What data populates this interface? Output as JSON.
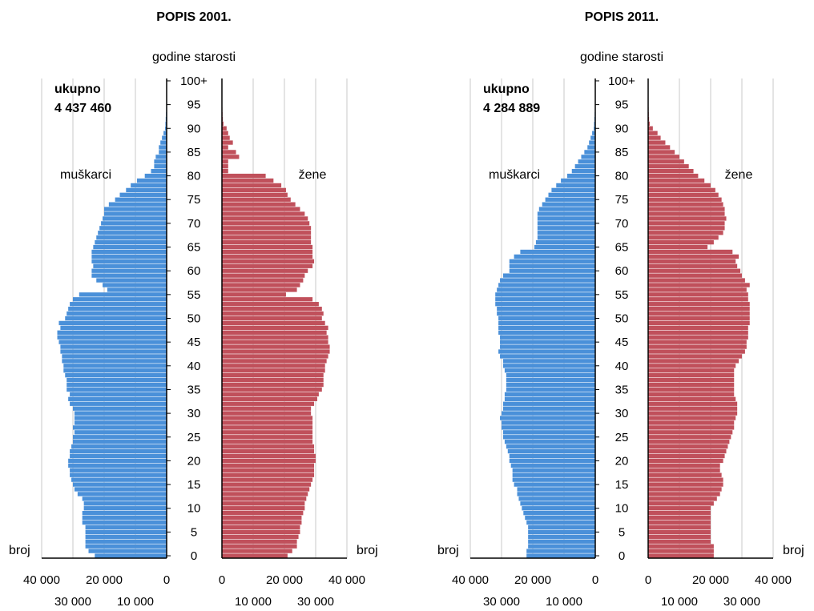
{
  "chart_data": [
    {
      "type": "bar",
      "orientation": "horizontal",
      "title": "POPIS 2001.",
      "ylabel": "godine starosti",
      "xlabel": "broj",
      "total_label": "ukupno",
      "total_value": "4 437 460",
      "age_ticks": [
        "0",
        "5",
        "10",
        "15",
        "20",
        "25",
        "30",
        "35",
        "40",
        "45",
        "50",
        "55",
        "60",
        "65",
        "70",
        "75",
        "80",
        "85",
        "90",
        "95",
        "100+"
      ],
      "x_ticks_top": [
        "40 000",
        "20 000",
        "0"
      ],
      "x_ticks_bottom": [
        "30 000",
        "10 000"
      ],
      "x_ticks_top_right": [
        "0",
        "20 000",
        "40 000"
      ],
      "x_ticks_bottom_right": [
        "10 000",
        "30 000"
      ],
      "xlim": [
        0,
        40000
      ],
      "grid": true,
      "series": [
        {
          "name": "muškarci",
          "color": "#4a90d9",
          "values": [
            23000,
            25000,
            26000,
            26000,
            26000,
            26000,
            26000,
            27000,
            27000,
            27000,
            26500,
            26500,
            27000,
            28500,
            29500,
            30000,
            30500,
            31000,
            31000,
            31500,
            31500,
            31000,
            31000,
            30500,
            30000,
            30000,
            29500,
            30000,
            29500,
            29500,
            29500,
            30000,
            31000,
            31500,
            31000,
            32000,
            32000,
            32000,
            32500,
            33000,
            33000,
            33500,
            33500,
            34000,
            34000,
            34500,
            35000,
            35000,
            34000,
            34500,
            32500,
            32000,
            31500,
            31000,
            30000,
            28000,
            19000,
            20500,
            22500,
            24000,
            24000,
            23500,
            24000,
            24000,
            24000,
            23500,
            23000,
            22500,
            22000,
            21500,
            21000,
            20500,
            20000,
            20000,
            18500,
            16500,
            15000,
            13000,
            11500,
            9500,
            7000,
            5000,
            4000,
            4000,
            3500,
            2500,
            2500,
            2000,
            1500,
            1000,
            500,
            400,
            300,
            200,
            150,
            100,
            80,
            60,
            40,
            30,
            20
          ]
        },
        {
          "name": "žene",
          "color": "#c0505b",
          "values": [
            21000,
            22500,
            24000,
            24000,
            24500,
            25000,
            25000,
            25500,
            25500,
            26000,
            26500,
            26500,
            27000,
            27500,
            28000,
            28500,
            29000,
            29500,
            29500,
            29500,
            30000,
            30000,
            29500,
            29500,
            29000,
            29000,
            29000,
            29000,
            29000,
            29000,
            28500,
            28500,
            29500,
            30500,
            31000,
            32000,
            32500,
            32500,
            32500,
            33000,
            33000,
            33500,
            34000,
            34500,
            34500,
            34000,
            34000,
            33500,
            34000,
            33000,
            32000,
            32500,
            32000,
            31000,
            29000,
            20500,
            24000,
            25000,
            26000,
            26500,
            27500,
            29000,
            29500,
            29000,
            29000,
            29000,
            28500,
            28500,
            28500,
            28500,
            28000,
            27500,
            26500,
            25000,
            23500,
            22000,
            21000,
            20500,
            19000,
            16500,
            14000,
            2000,
            2000,
            2000,
            5500,
            4500,
            2000,
            3500,
            2500,
            2000,
            1500,
            500,
            300,
            200,
            150,
            100,
            80,
            60,
            40,
            30,
            20
          ]
        }
      ]
    },
    {
      "type": "bar",
      "orientation": "horizontal",
      "title": "POPIS 2011.",
      "ylabel": "godine starosti",
      "xlabel": "broj",
      "total_label": "ukupno",
      "total_value": "4 284 889",
      "age_ticks": [
        "0",
        "5",
        "10",
        "15",
        "20",
        "25",
        "30",
        "35",
        "40",
        "45",
        "50",
        "55",
        "60",
        "65",
        "70",
        "75",
        "80",
        "85",
        "90",
        "95",
        "100+"
      ],
      "x_ticks_top": [
        "40 000",
        "20 000",
        "0"
      ],
      "x_ticks_bottom": [
        "30 000",
        "10 000"
      ],
      "x_ticks_top_right": [
        "0",
        "20 000",
        "40 000"
      ],
      "x_ticks_bottom_right": [
        "10 000",
        "30 000"
      ],
      "xlim": [
        0,
        40000
      ],
      "grid": true,
      "series": [
        {
          "name": "muškarci",
          "color": "#4a90d9",
          "values": [
            22000,
            22000,
            21500,
            21500,
            21500,
            21500,
            21500,
            22000,
            22500,
            23000,
            23500,
            24000,
            24500,
            25000,
            25000,
            26000,
            26500,
            26500,
            26500,
            27000,
            27500,
            27500,
            28000,
            28500,
            29000,
            29500,
            29500,
            30000,
            30000,
            30500,
            30000,
            29500,
            29500,
            29000,
            29000,
            28500,
            28500,
            28500,
            28500,
            29000,
            29500,
            29500,
            30500,
            31000,
            30500,
            30500,
            30500,
            31000,
            31000,
            31000,
            31000,
            31500,
            31500,
            32000,
            32000,
            32000,
            31500,
            31000,
            30500,
            29500,
            27500,
            27500,
            27500,
            26000,
            24000,
            19500,
            19000,
            18500,
            18500,
            18500,
            18500,
            18500,
            18500,
            18000,
            17000,
            16000,
            15000,
            14000,
            12500,
            11000,
            9000,
            7500,
            6500,
            5500,
            4500,
            3500,
            2500,
            2000,
            1500,
            1000,
            500,
            400,
            300,
            200,
            150,
            100,
            80,
            60,
            40,
            30,
            20
          ]
        },
        {
          "name": "žene",
          "color": "#c0505b",
          "values": [
            21000,
            21000,
            21000,
            20000,
            20000,
            20000,
            20000,
            20000,
            20000,
            20000,
            20000,
            21000,
            22000,
            23000,
            23500,
            24000,
            24000,
            23500,
            23000,
            23000,
            24000,
            24500,
            25000,
            25500,
            26000,
            26500,
            27000,
            27500,
            27500,
            28000,
            28500,
            28500,
            28500,
            28000,
            27500,
            27500,
            27500,
            27500,
            27500,
            27500,
            28000,
            29000,
            30000,
            31000,
            31500,
            31500,
            32000,
            32000,
            32000,
            32500,
            32500,
            32500,
            32500,
            32500,
            32000,
            32000,
            31500,
            32500,
            31000,
            30000,
            29500,
            28500,
            28000,
            29000,
            27000,
            19000,
            21000,
            22500,
            24000,
            24500,
            24500,
            25000,
            24500,
            24500,
            24000,
            23500,
            22500,
            21500,
            20000,
            18000,
            16000,
            14500,
            13000,
            11500,
            10000,
            8500,
            7000,
            5500,
            4000,
            3000,
            1500,
            500,
            300,
            200,
            150,
            100,
            80,
            60,
            40,
            30,
            20
          ]
        }
      ]
    }
  ]
}
